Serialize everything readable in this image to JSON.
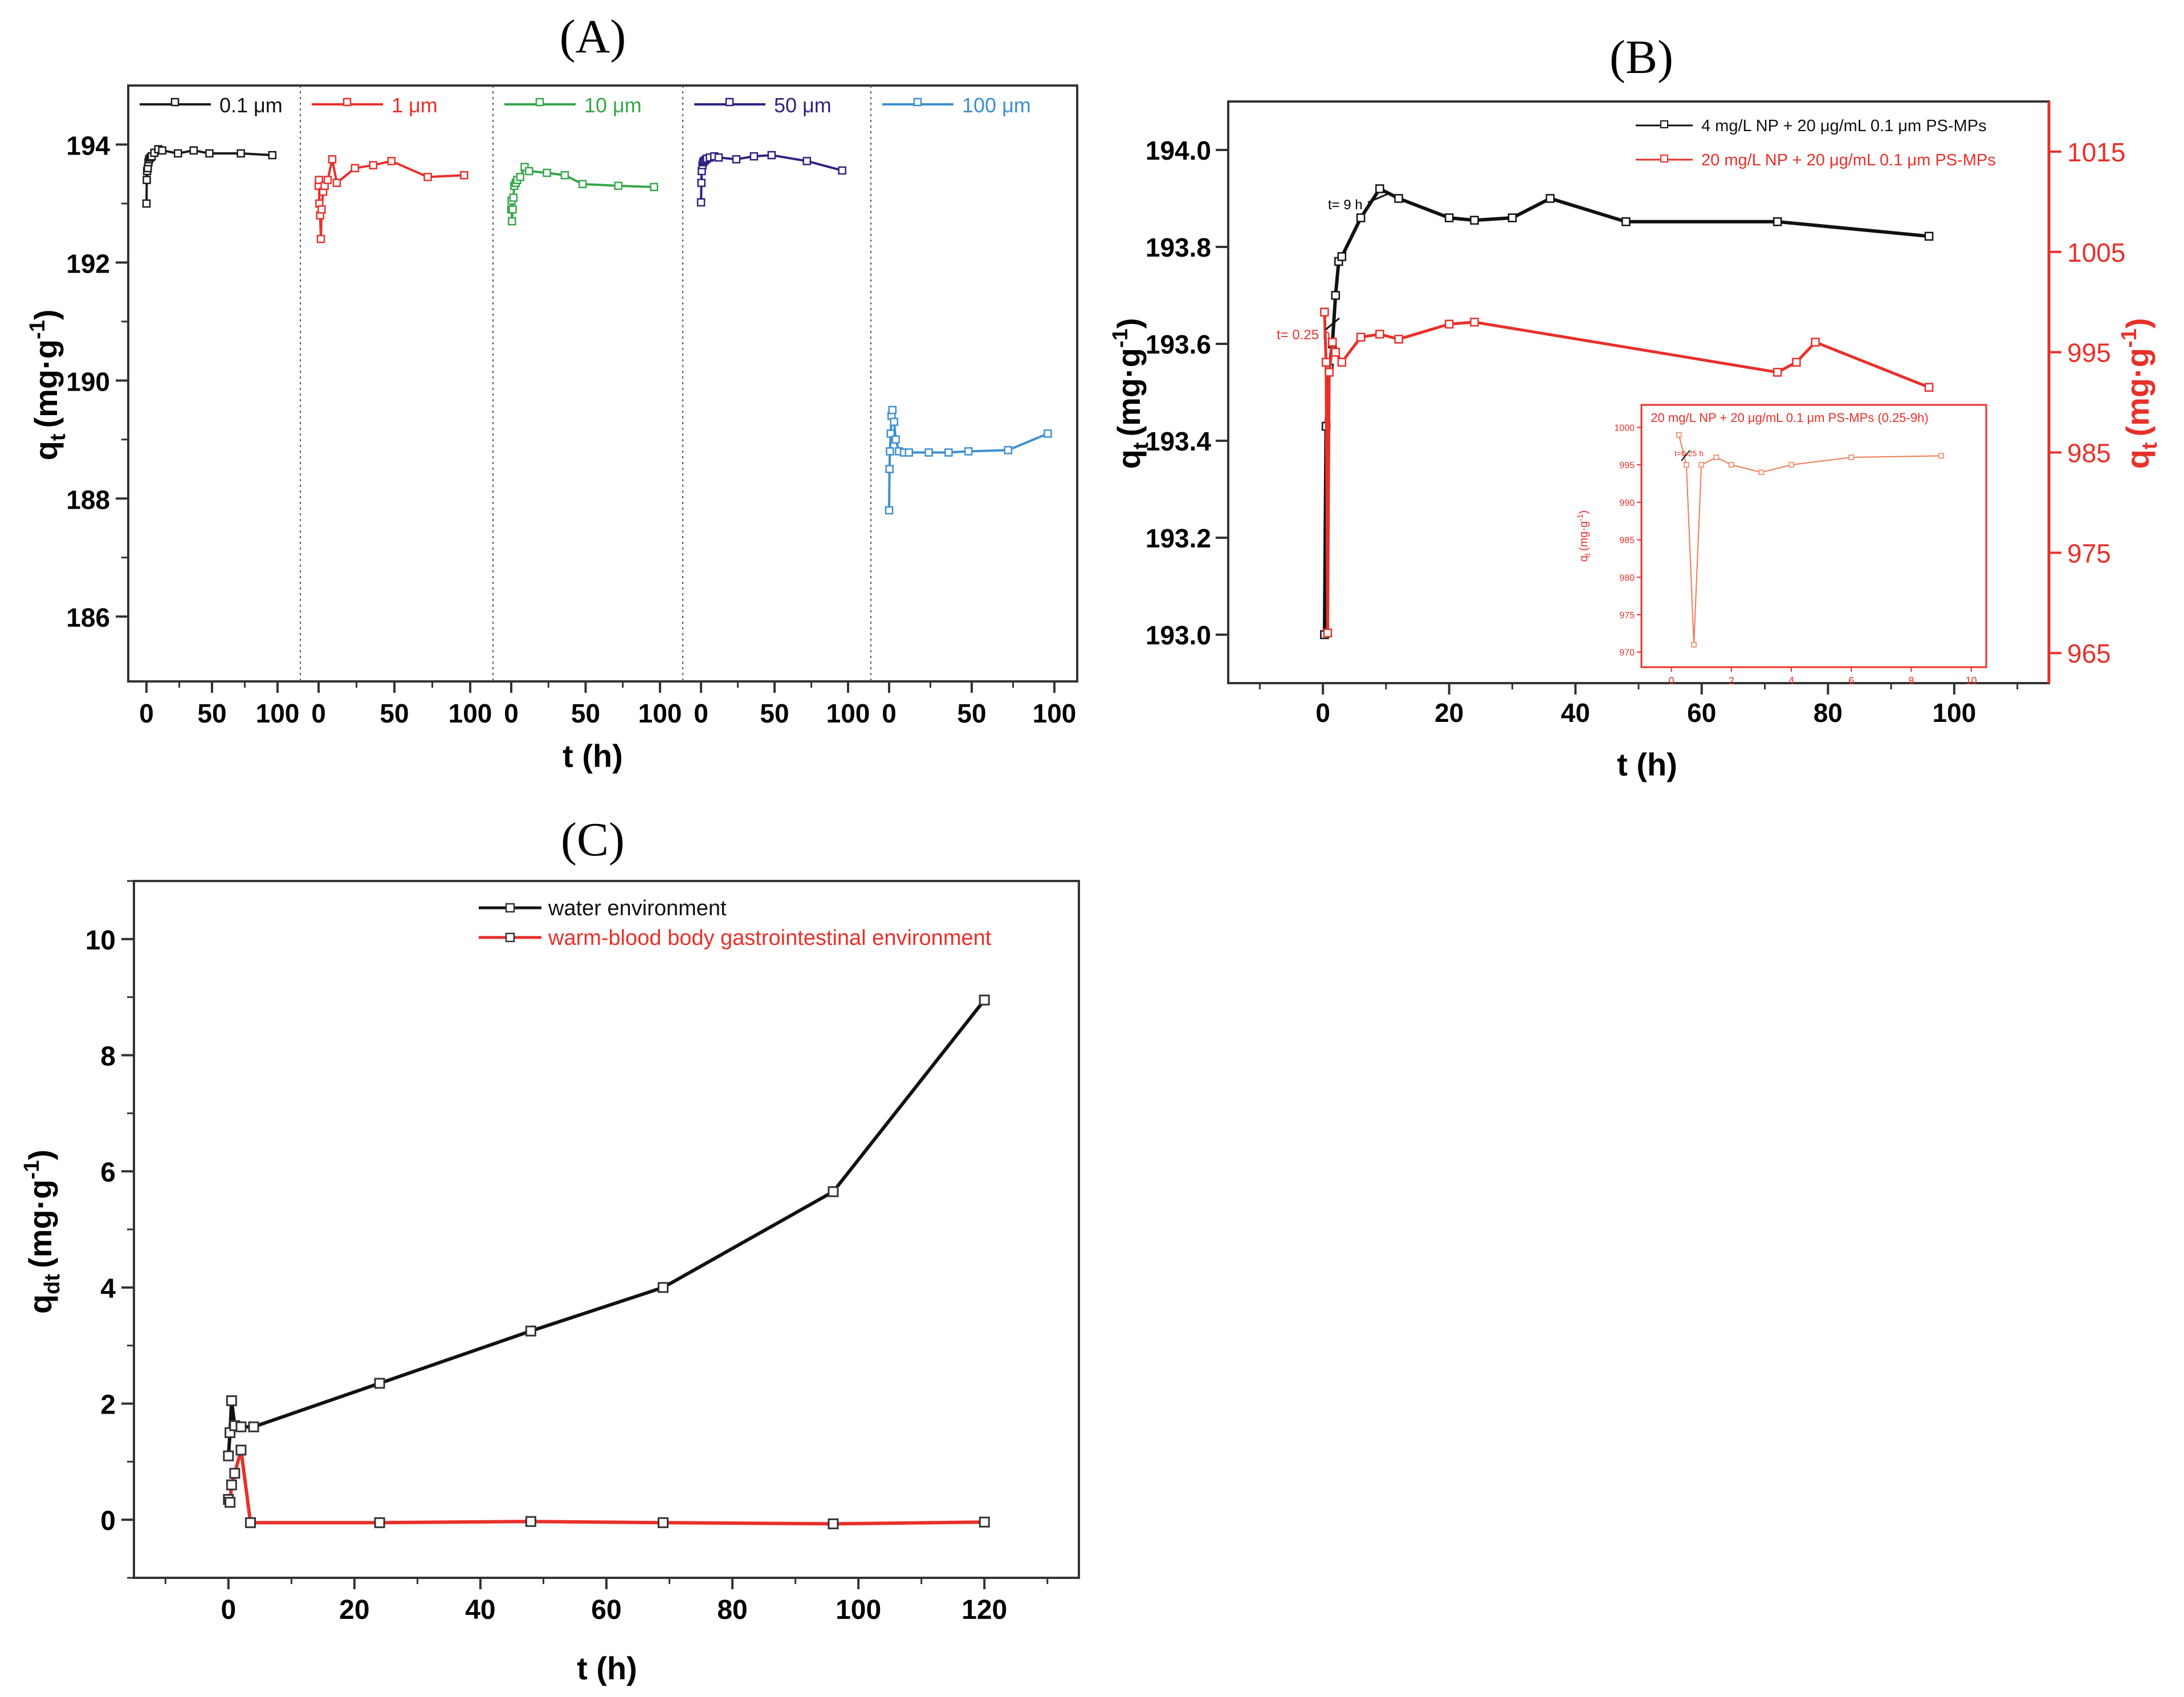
{
  "chart_data": [
    {
      "panel": "A",
      "type": "line",
      "title": "(A)",
      "xlabel": "t (h)",
      "ylabel": "qt (mg·g-1)",
      "ylabel_main": "q",
      "ylabel_sub": "t",
      "ylabel_unit": "(mg·g",
      "ylabel_sup": "-1",
      "ylabel_close": ")",
      "ylim": [
        184.9,
        195.0
      ],
      "yticks": [
        186,
        188,
        190,
        192,
        194
      ],
      "ytick_labels": [
        "186",
        "188",
        "190",
        "192",
        "194"
      ],
      "legend_position": "top (one entry per segment)",
      "segments": [
        {
          "name": "0.1 μm",
          "color": "#1a1a1a",
          "xticks": [
            "0",
            "50",
            "100"
          ],
          "x": [
            0,
            0.25,
            0.5,
            1,
            1.5,
            2,
            3,
            4,
            6,
            9,
            12,
            24,
            36,
            48,
            72,
            96
          ],
          "y": [
            193.0,
            193.4,
            193.55,
            193.6,
            193.7,
            193.75,
            193.78,
            193.8,
            193.86,
            193.92,
            193.9,
            193.85,
            193.9,
            193.85,
            193.85,
            193.82
          ]
        },
        {
          "name": "1 μm",
          "color": "#e8302a",
          "xticks": [
            "0",
            "50",
            "100"
          ],
          "x": [
            0,
            0.25,
            0.5,
            1,
            1.5,
            2,
            3,
            4,
            6,
            9,
            12,
            24,
            36,
            48,
            72,
            96
          ],
          "y": [
            193.3,
            193.4,
            193.0,
            192.8,
            192.4,
            192.9,
            193.2,
            193.3,
            193.4,
            193.75,
            193.35,
            193.6,
            193.65,
            193.72,
            193.45,
            193.48
          ]
        },
        {
          "name": "10 μm",
          "color": "#35a64a",
          "xticks": [
            "0",
            "50",
            "100"
          ],
          "x": [
            0,
            0.25,
            0.5,
            1,
            1.5,
            2,
            3,
            4,
            6,
            9,
            12,
            24,
            36,
            48,
            72,
            96
          ],
          "y": [
            192.9,
            193.05,
            192.7,
            192.9,
            193.1,
            193.3,
            193.35,
            193.4,
            193.45,
            193.62,
            193.55,
            193.52,
            193.48,
            193.33,
            193.3,
            193.28
          ]
        },
        {
          "name": "50 μm",
          "color": "#2b2380",
          "xticks": [
            "0",
            "50",
            "100"
          ],
          "x": [
            0,
            0.25,
            0.5,
            1,
            1.5,
            2,
            3,
            4,
            6,
            9,
            12,
            24,
            36,
            48,
            72,
            96
          ],
          "y": [
            193.02,
            193.35,
            193.55,
            193.65,
            193.7,
            193.72,
            193.74,
            193.76,
            193.78,
            193.8,
            193.78,
            193.75,
            193.8,
            193.82,
            193.72,
            193.56
          ]
        },
        {
          "name": "100 μm",
          "color": "#3d8fd0",
          "xticks": [
            "0",
            "50",
            "100"
          ],
          "x": [
            0,
            0.25,
            0.5,
            1,
            1.5,
            2,
            3,
            4,
            6,
            9,
            12,
            24,
            36,
            48,
            72,
            96
          ],
          "y": [
            187.8,
            188.5,
            188.8,
            189.1,
            189.4,
            189.5,
            189.3,
            189.0,
            188.8,
            188.78,
            188.78,
            188.78,
            188.78,
            188.8,
            188.82,
            189.1
          ]
        }
      ]
    },
    {
      "panel": "B",
      "type": "line",
      "title": "(B)",
      "xlabel": "t (h)",
      "ylabel": "qt (mg·g-1)",
      "ylabel_main": "q",
      "ylabel_sub": "t",
      "ylabel_unit": "(mg·g",
      "ylabel_sup": "-1",
      "ylabel_close": ")",
      "xlim": [
        -15,
        115
      ],
      "xticks": [
        0,
        20,
        40,
        60,
        80,
        100
      ],
      "xtick_labels": [
        "0",
        "20",
        "40",
        "60",
        "80",
        "100"
      ],
      "ylim": [
        192.9,
        194.1
      ],
      "yticks": [
        193.0,
        193.2,
        193.4,
        193.6,
        193.8,
        194.0
      ],
      "ytick_labels": [
        "193.0",
        "193.2",
        "193.4",
        "193.6",
        "193.8",
        "194.0"
      ],
      "y2lim": [
        962,
        1020
      ],
      "y2ticks": [
        965,
        975,
        985,
        995,
        1005,
        1015
      ],
      "y2tick_labels": [
        "965",
        "975",
        "985",
        "995",
        "1005",
        "1015"
      ],
      "legend_position": "top-right",
      "series": [
        {
          "name": "4 mg/L NP + 20 μg/mL 0.1 μm PS-MPs",
          "axis": "left",
          "color": "#111111",
          "x": [
            0.25,
            0.5,
            1,
            1.5,
            2,
            2.5,
            3,
            6,
            9,
            12,
            20,
            24,
            30,
            36,
            48,
            72,
            96
          ],
          "y": [
            193.0,
            193.43,
            193.55,
            193.6,
            193.7,
            193.77,
            193.78,
            193.86,
            193.92,
            193.9,
            193.86,
            193.855,
            193.86,
            193.9,
            193.852,
            193.852,
            193.822
          ]
        },
        {
          "name": "20 mg/L NP + 20 μg/mL 0.1 μm PS-MPs",
          "axis": "right",
          "color": "#e8302a",
          "x": [
            0.25,
            0.5,
            0.75,
            1,
            1.5,
            2,
            3,
            6,
            9,
            12,
            20,
            24,
            72,
            75,
            78,
            96
          ],
          "y": [
            999,
            994,
            967,
            993,
            996,
            995,
            994,
            996.5,
            996.8,
            996.3,
            997.8,
            998,
            993,
            994,
            996,
            991.5
          ]
        }
      ],
      "annotations": [
        "t= 9 h",
        "t= 0.25 h"
      ],
      "inset": {
        "title": "20 mg/L NP + 20 μg/mL 0.1 μm PS-MPs (0.25-9h)",
        "ylabel": "qt (mg·g-1)",
        "ylabel_main": "q",
        "ylabel_sub": "t",
        "ylabel_unit": "(mg·g",
        "ylabel_sup": "-1",
        "ylabel_close": ")",
        "annotation": "t=0.25 h",
        "xlim": [
          -1,
          10.5
        ],
        "xticks": [
          0,
          2,
          4,
          6,
          8,
          10
        ],
        "xtick_labels": [
          "0",
          "2",
          "4",
          "6",
          "8",
          "10"
        ],
        "ylim": [
          968,
          1003
        ],
        "yticks": [
          970,
          975,
          980,
          985,
          990,
          995,
          1000
        ],
        "ytick_labels": [
          "970",
          "975",
          "980",
          "985",
          "990",
          "995",
          "1000"
        ],
        "x": [
          0.25,
          0.5,
          0.75,
          1,
          1.5,
          2,
          3,
          4,
          6,
          9
        ],
        "y": [
          999,
          995,
          971,
          995,
          996,
          995,
          994,
          995,
          996,
          996.2
        ]
      }
    },
    {
      "panel": "C",
      "type": "line",
      "title": "(C)",
      "xlabel": "t (h)",
      "ylabel": "qdt (mg·g-1)",
      "ylabel_main": "q",
      "ylabel_sub": "dt",
      "ylabel_unit": "(mg·g",
      "ylabel_sup": "-1",
      "ylabel_close": ")",
      "xlim": [
        -15,
        135
      ],
      "xticks": [
        0,
        20,
        40,
        60,
        80,
        100,
        120
      ],
      "xtick_labels": [
        "0",
        "20",
        "40",
        "60",
        "80",
        "100",
        "120"
      ],
      "ylim": [
        -1,
        11
      ],
      "yticks": [
        0,
        2,
        4,
        6,
        8,
        10
      ],
      "ytick_labels": [
        "0",
        "2",
        "4",
        "6",
        "8",
        "10"
      ],
      "legend_position": "top-right",
      "series": [
        {
          "name": "water environment",
          "color": "#111111",
          "x": [
            0,
            0.25,
            0.5,
            1,
            2,
            4,
            24,
            48,
            69,
            96,
            120
          ],
          "y": [
            1.1,
            1.5,
            2.05,
            1.62,
            1.6,
            1.6,
            2.35,
            3.25,
            4.0,
            5.65,
            8.95
          ]
        },
        {
          "name": "warm-blood body gastrointestinal environment",
          "color": "#e8302a",
          "x": [
            0,
            0.25,
            0.5,
            1,
            2,
            3.5,
            24,
            48,
            69,
            96,
            120
          ],
          "y": [
            0.35,
            0.3,
            0.6,
            0.8,
            1.2,
            -0.05,
            -0.05,
            -0.03,
            -0.05,
            -0.07,
            -0.04
          ]
        }
      ]
    }
  ]
}
